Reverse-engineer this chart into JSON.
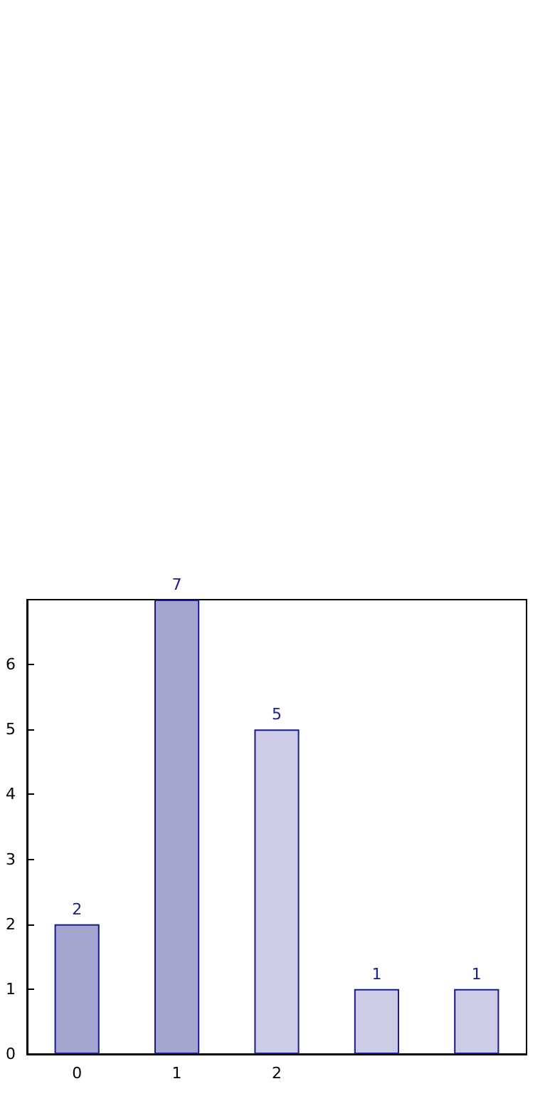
{
  "chart_data": {
    "type": "bar",
    "categories": [
      "0",
      "1",
      "2",
      null,
      null
    ],
    "values": [
      2,
      7,
      5,
      1,
      1
    ],
    "colors": [
      "#a5a5d2",
      "#a5a5d2",
      "#cccce6",
      "#cccce6",
      "#cccce6"
    ],
    "ylim": [
      0,
      7
    ],
    "yticks": [
      0,
      1,
      2,
      3,
      4,
      5,
      6
    ],
    "grid": false,
    "data_labels": true
  }
}
